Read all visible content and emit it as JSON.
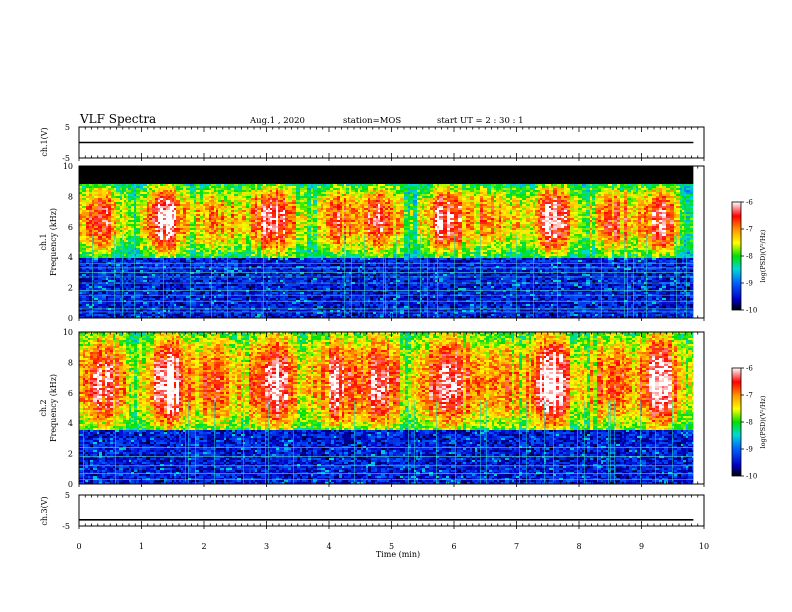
{
  "header": {
    "title": "VLF Spectra",
    "date": "Aug.1  , 2020",
    "station": "station=MOS",
    "start": "start  UT  =   2  : 30 : 1"
  },
  "chart_data": [
    {
      "type": "line",
      "panel": "ch1-waveform",
      "ylabel": "ch.1(V)",
      "ylim": [
        -5,
        5
      ],
      "yticks": [
        "5",
        "-5"
      ],
      "xlim": [
        0,
        10
      ],
      "series": [
        {
          "x": [
            0,
            9.83
          ],
          "y": [
            0,
            0
          ]
        }
      ]
    },
    {
      "type": "heatmap",
      "panel": "ch1-spectrogram",
      "ylabel_lines": [
        "ch.1",
        "Frequency  (kHz)"
      ],
      "ylim": [
        0,
        10
      ],
      "yticks": [
        "0",
        "2",
        "4",
        "6",
        "8",
        "10"
      ],
      "xlim": [
        0,
        10
      ],
      "data_end_min": 9.83,
      "emission_band_khz": [
        4,
        8.8
      ],
      "peak_khz": 6.5,
      "saturated_top_khz": [
        8.8,
        10
      ],
      "narrowband_lines_khz": [
        0.4,
        0.6,
        1.1,
        1.5,
        1.8,
        2.3,
        2.7,
        3.0,
        3.3,
        3.6
      ],
      "colorbar": {
        "label": "log(PSD)(V²/Hz)",
        "range": [
          -10,
          -6
        ],
        "ticks": [
          "-6",
          "-7",
          "-8",
          "-9",
          "-10"
        ]
      }
    },
    {
      "type": "heatmap",
      "panel": "ch2-spectrogram",
      "ylabel_lines": [
        "ch.2",
        "Frequency  (kHz)"
      ],
      "ylim": [
        0,
        10
      ],
      "yticks": [
        "0",
        "2",
        "4",
        "6",
        "8",
        "10"
      ],
      "xlim": [
        0,
        10
      ],
      "data_end_min": 9.83,
      "emission_band_khz": [
        3.5,
        10
      ],
      "peak_khz": 6.5,
      "narrowband_lines_khz": [
        0.3,
        0.7,
        1.2,
        1.8,
        2.4
      ],
      "colorbar": {
        "label": "log(PSD)(V²/Hz)",
        "range": [
          -10,
          -6
        ],
        "ticks": [
          "-6",
          "-7",
          "-8",
          "-9",
          "-10"
        ]
      }
    },
    {
      "type": "line",
      "panel": "ch3-waveform",
      "ylabel": "ch.3(V)",
      "ylim": [
        -5,
        5
      ],
      "yticks": [
        "5",
        "-5"
      ],
      "xlim": [
        0,
        10
      ],
      "xlabel": "Time  (min)",
      "xticks": [
        "0",
        "1",
        "2",
        "3",
        "4",
        "5",
        "6",
        "7",
        "8",
        "9",
        "10"
      ],
      "series": [
        {
          "x": [
            0,
            9.83
          ],
          "y": [
            -3,
            -3
          ]
        }
      ]
    }
  ]
}
